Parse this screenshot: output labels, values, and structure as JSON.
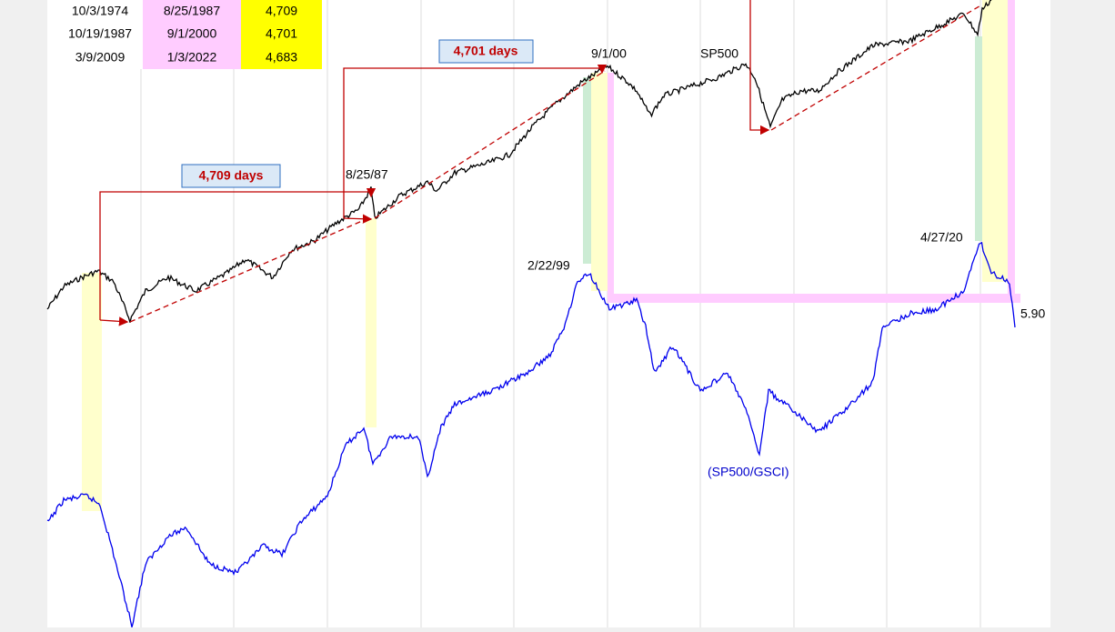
{
  "table": {
    "rows": [
      [
        "10/3/1974",
        "8/25/1987",
        "4,709"
      ],
      [
        "10/19/1987",
        "9/1/2000",
        "4,701"
      ],
      [
        "3/9/2009",
        "1/3/2022",
        "4,683"
      ]
    ]
  },
  "annotations": {
    "days_1": "4,709 days",
    "days_2": "4,701 days",
    "date_1987": "8/25/87",
    "date_2000": "9/1/00",
    "sp500": "SP500",
    "date_1999": "2/22/99",
    "date_2020": "4/27/20",
    "ratio": "(SP500/GSCI)",
    "last_value": "5.90"
  }
}
